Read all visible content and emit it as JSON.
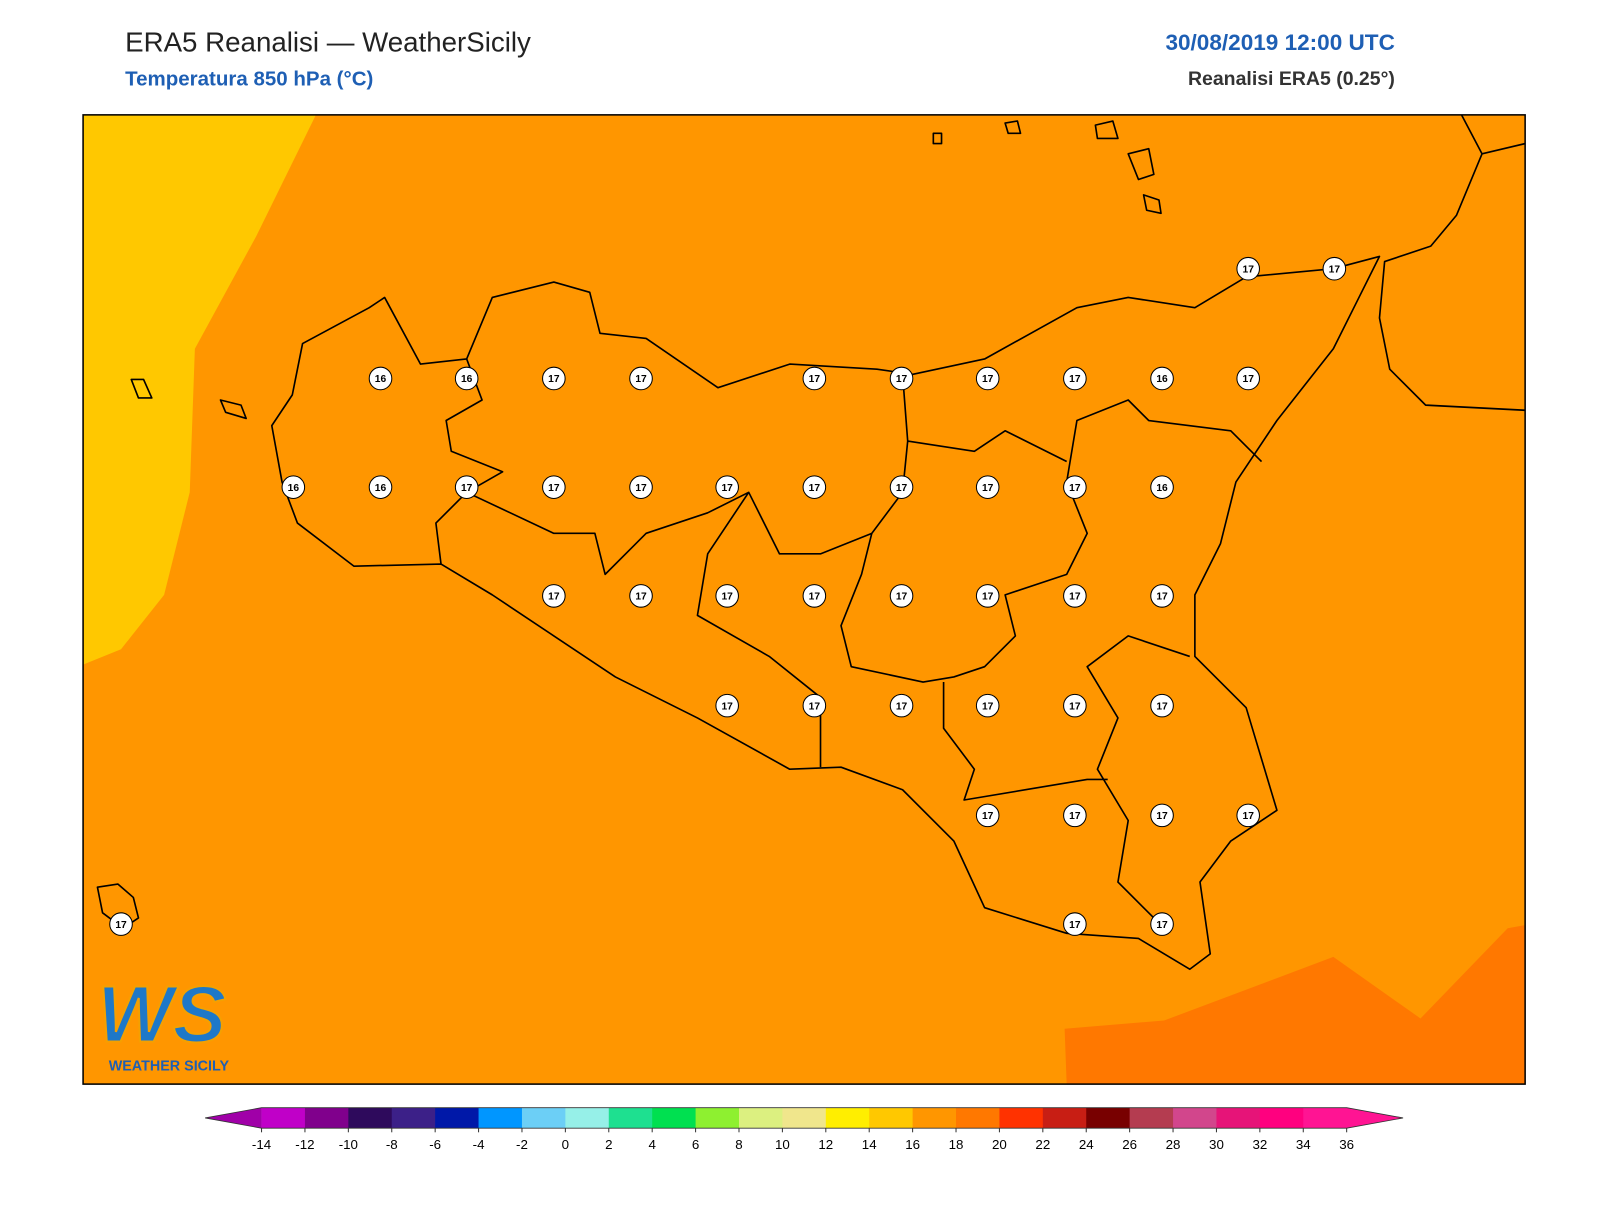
{
  "header": {
    "title": "ERA5 Reanalisi — WeatherSicily",
    "subtitle": "Temperatura 850 hPa (°C)",
    "datetime": "30/08/2019 12:00 UTC",
    "source": "Reanalisi ERA5 (0.25°)"
  },
  "map": {
    "background_color": "#ff9600",
    "cool_region_color": "#ffc800",
    "warm_region_color": "#ff7800",
    "station_values": [
      17,
      17,
      16,
      16,
      17,
      17,
      17,
      17,
      17,
      17,
      16,
      17,
      16,
      16,
      17,
      17,
      17,
      17,
      17,
      17,
      17,
      17,
      16,
      17,
      17,
      17,
      17,
      17,
      17,
      17,
      17,
      17,
      17,
      17,
      17,
      17,
      17,
      17,
      17,
      17,
      17,
      17,
      17,
      17
    ]
  },
  "colorbar": {
    "ticks": [
      -14,
      -12,
      -10,
      -8,
      -6,
      -4,
      -2,
      0,
      2,
      4,
      6,
      8,
      10,
      12,
      14,
      16,
      18,
      20,
      22,
      24,
      26,
      28,
      30,
      32,
      34,
      36
    ],
    "under_color": "#a000a8",
    "over_color": "#ff1493",
    "colors": [
      "#c000c8",
      "#80008c",
      "#2e0a5c",
      "#3c2088",
      "#0018a8",
      "#0096ff",
      "#6ccff6",
      "#96f0e8",
      "#1ee090",
      "#00e050",
      "#8ef030",
      "#dcf080",
      "#f0e68c",
      "#ffee00",
      "#ffc800",
      "#ff9600",
      "#ff7800",
      "#ff3200",
      "#c81e14",
      "#780000",
      "#b43c50",
      "#d2468c",
      "#e61478",
      "#ff007f",
      "#ff1493"
    ]
  },
  "logo": {
    "mark": "WS",
    "text": "WEATHER SICILY"
  }
}
